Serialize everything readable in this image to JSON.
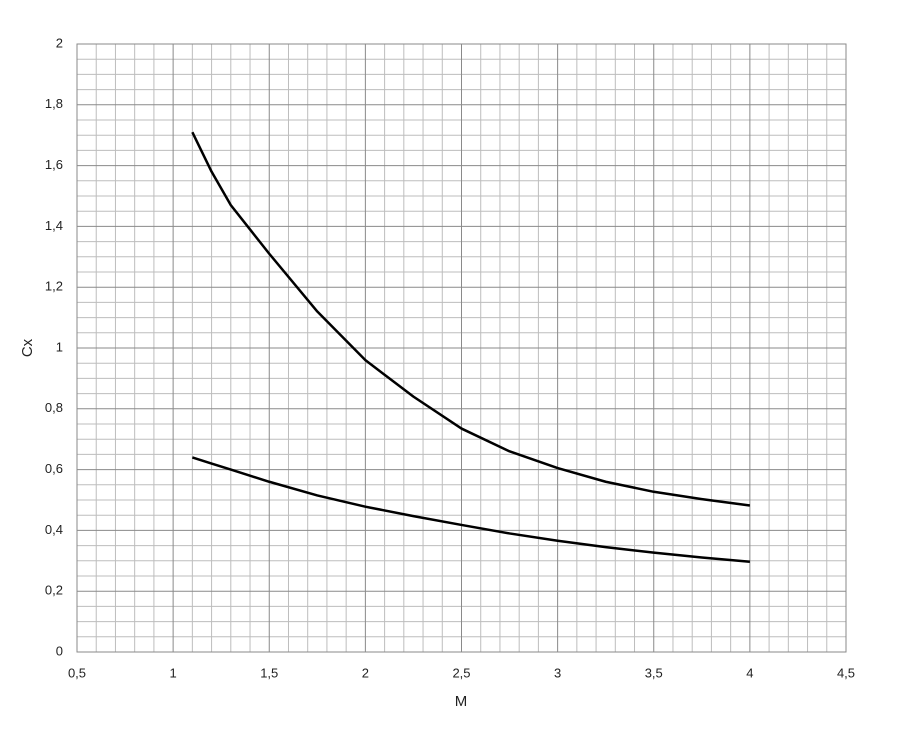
{
  "chart_data": {
    "type": "line",
    "x_label": "M",
    "y_label": "Cx",
    "series": [
      {
        "color": "#000000",
        "x": [
          1.1,
          1.2,
          1.3,
          1.4,
          1.5,
          1.75,
          2,
          2.25,
          2.5,
          2.75,
          3,
          3.25,
          3.5,
          3.75,
          4
        ],
        "values": [
          1.71,
          1.58,
          1.47,
          1.39,
          1.31,
          1.12,
          0.96,
          0.84,
          0.735,
          0.66,
          0.605,
          0.56,
          0.527,
          0.503,
          0.482
        ]
      },
      {
        "color": "#000000",
        "x": [
          1.1,
          1.2,
          1.3,
          1.4,
          1.5,
          1.75,
          2,
          2.25,
          2.5,
          2.75,
          3,
          3.25,
          3.5,
          3.75,
          4
        ],
        "values": [
          0.64,
          0.62,
          0.6,
          0.58,
          0.56,
          0.515,
          0.478,
          0.447,
          0.418,
          0.39,
          0.366,
          0.345,
          0.327,
          0.311,
          0.297
        ]
      }
    ],
    "xlim": [
      0.5,
      4.5
    ],
    "xticks": [
      {
        "value": 0.5,
        "label": "0,5"
      },
      1,
      {
        "value": 1.5,
        "label": "1,5"
      },
      2,
      {
        "value": 2.5,
        "label": "2,5"
      },
      3,
      {
        "value": 3.5,
        "label": "3,5"
      },
      4,
      {
        "value": 4.5,
        "label": "4,5"
      }
    ],
    "ylim": [
      0,
      2
    ],
    "yticks": [
      0,
      {
        "value": 0.2,
        "label": "0,2"
      },
      {
        "value": 0.4,
        "label": "0,4"
      },
      {
        "value": 0.6,
        "label": "0,6"
      },
      {
        "value": 0.8,
        "label": "0,8"
      },
      1,
      {
        "value": 1.2,
        "label": "1,2"
      },
      {
        "value": 1.4,
        "label": "1,4"
      },
      {
        "value": 1.6,
        "label": "1,6"
      },
      {
        "value": 1.8,
        "label": "1,8"
      },
      2
    ],
    "grid": true,
    "minor_grid": true
  }
}
